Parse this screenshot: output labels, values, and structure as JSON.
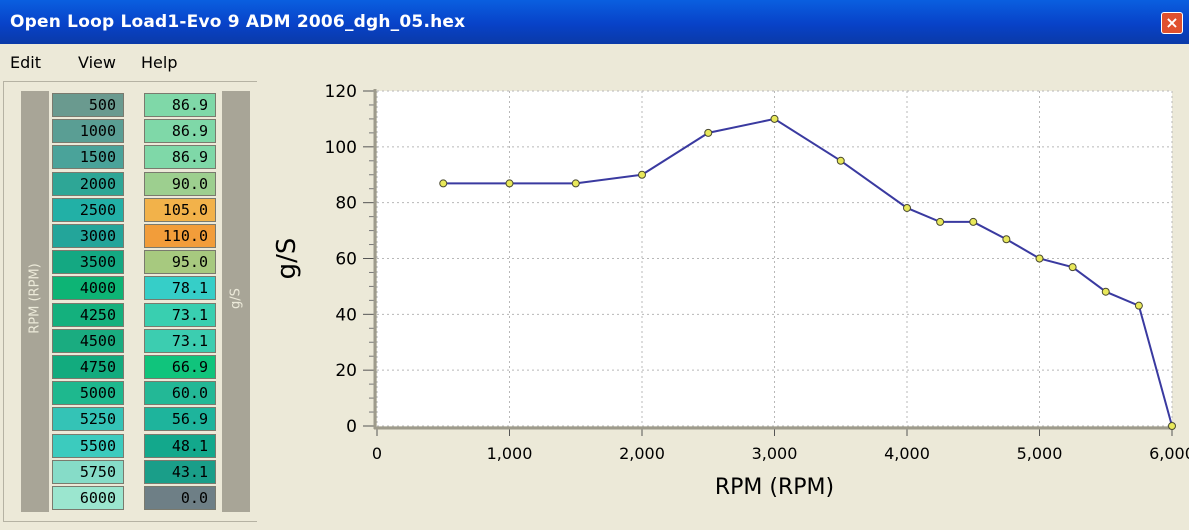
{
  "window": {
    "title": "Open Loop Load1-Evo 9 ADM 2006_dgh_05.hex",
    "close_glyph": "×"
  },
  "menu": [
    {
      "label": "Edit"
    },
    {
      "label": "View"
    },
    {
      "label": "Help"
    }
  ],
  "table": {
    "rpm_axis_label": "RPM (RPM)",
    "value_axis_label": "g/S",
    "rpm": [
      "500",
      "1000",
      "1500",
      "2000",
      "2500",
      "3000",
      "3500",
      "4000",
      "4250",
      "4500",
      "4750",
      "5000",
      "5250",
      "5500",
      "5750",
      "6000"
    ],
    "values": [
      "86.9",
      "86.9",
      "86.9",
      "90.0",
      "105.0",
      "110.0",
      "95.0",
      "78.1",
      "73.1",
      "73.1",
      "66.9",
      "60.0",
      "56.9",
      "48.1",
      "43.1",
      "0.0"
    ],
    "rpm_colors": [
      "#6a9a8f",
      "#5a9e94",
      "#4aa39a",
      "#2ea696",
      "#22b0a6",
      "#23a59a",
      "#14a882",
      "#0db475",
      "#14b07d",
      "#1aac80",
      "#12ab7e",
      "#1eb88e",
      "#34c3b6",
      "#3ccbbe",
      "#86dcc8",
      "#9be6cf"
    ],
    "value_colors": [
      "#7fd8a8",
      "#7fd8a8",
      "#7fd8a8",
      "#9dcf8f",
      "#f2b24a",
      "#f29d3a",
      "#a7c97f",
      "#36cec8",
      "#39cfb0",
      "#3ccdb0",
      "#10c47c",
      "#23b896",
      "#1eb49c",
      "#13a88c",
      "#1a9e89",
      "#6e7f86"
    ]
  },
  "chart_data": {
    "type": "line",
    "x": [
      500,
      1000,
      1500,
      2000,
      2500,
      3000,
      3500,
      4000,
      4250,
      4500,
      4750,
      5000,
      5250,
      5500,
      5750,
      6000
    ],
    "y": [
      86.9,
      86.9,
      86.9,
      90.0,
      105.0,
      110.0,
      95.0,
      78.1,
      73.1,
      73.1,
      66.9,
      60.0,
      56.9,
      48.1,
      43.1,
      0.0
    ],
    "xlabel": "RPM (RPM)",
    "ylabel": "g/S",
    "xlim": [
      0,
      6000
    ],
    "ylim": [
      0,
      120
    ],
    "xticks": [
      "0",
      "1,000",
      "2,000",
      "3,000",
      "4,000",
      "5,000",
      "6,000"
    ],
    "yticks": [
      "0",
      "20",
      "40",
      "60",
      "80",
      "100",
      "120"
    ],
    "grid": true,
    "line_color": "#3a3aa0",
    "marker_color": "#e8e85a"
  }
}
